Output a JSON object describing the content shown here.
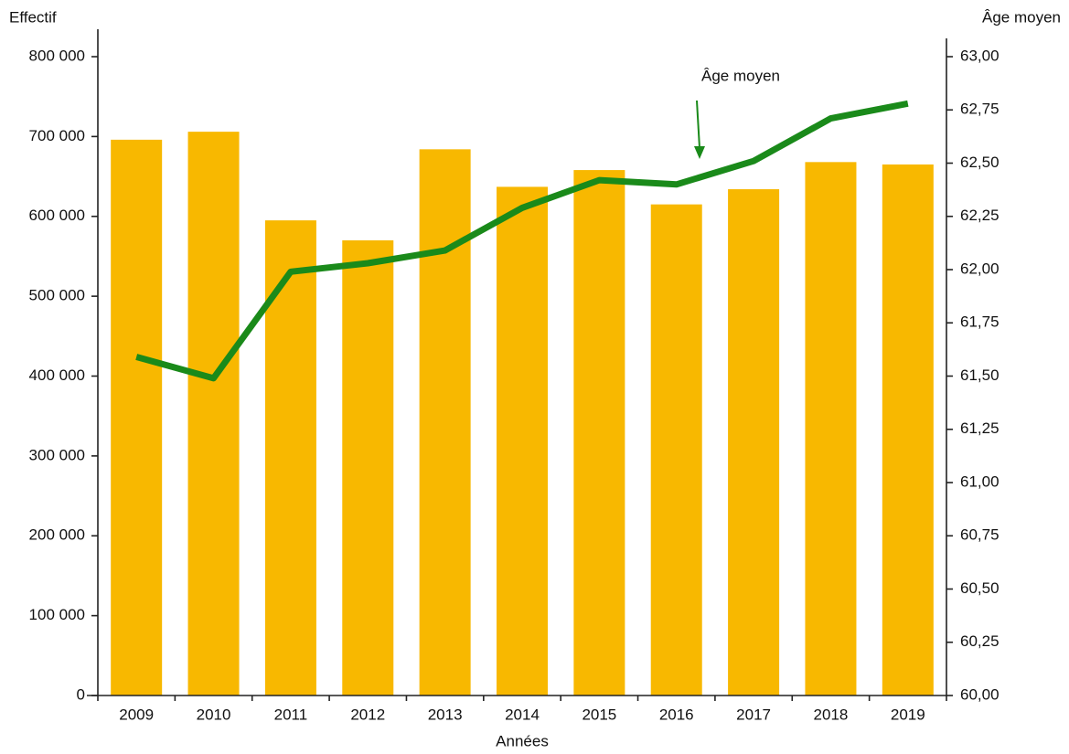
{
  "chart_data": {
    "type": "bar",
    "y_label": "Effectif",
    "y2_label": "Âge moyen",
    "x_label": "Années",
    "annotation": "Âge moyen",
    "categories": [
      "2009",
      "2010",
      "2011",
      "2012",
      "2013",
      "2014",
      "2015",
      "2016",
      "2017",
      "2018",
      "2019"
    ],
    "series": [
      {
        "type": "bar",
        "color": "#f8b800",
        "values": [
          696000,
          706000,
          595000,
          570000,
          684000,
          637000,
          658000,
          615000,
          634000,
          668000,
          665000
        ]
      },
      {
        "type": "line",
        "name": "Âge moyen",
        "axis": "y2",
        "color": "#1a8a1a",
        "values": [
          61.59,
          61.49,
          61.99,
          62.03,
          62.09,
          62.29,
          62.42,
          62.4,
          62.51,
          62.71,
          62.78
        ]
      }
    ],
    "ylim": [
      0,
      800000
    ],
    "yticks": [
      0,
      {
        "value": 100000,
        "label": "100 000"
      },
      {
        "value": 200000,
        "label": "200 000"
      },
      {
        "value": 300000,
        "label": "300 000"
      },
      {
        "value": 400000,
        "label": "400 000"
      },
      {
        "value": 500000,
        "label": "500 000"
      },
      {
        "value": 600000,
        "label": "600 000"
      },
      {
        "value": 700000,
        "label": "700 000"
      },
      {
        "value": 800000,
        "label": "800 000"
      }
    ],
    "y2lim": [
      60,
      63
    ],
    "y2ticks": [
      {
        "value": 60,
        "label": "60,00"
      },
      {
        "value": 60.25,
        "label": "60,25"
      },
      {
        "value": 60.5,
        "label": "60,50"
      },
      {
        "value": 60.75,
        "label": "60,75"
      },
      {
        "value": 61,
        "label": "61,00"
      },
      {
        "value": 61.25,
        "label": "61,25"
      },
      {
        "value": 61.5,
        "label": "61,50"
      },
      {
        "value": 61.75,
        "label": "61,75"
      },
      {
        "value": 62,
        "label": "62,00"
      },
      {
        "value": 62.25,
        "label": "62,25"
      },
      {
        "value": 62.5,
        "label": "62,50"
      },
      {
        "value": 62.75,
        "label": "62,75"
      },
      {
        "value": 63,
        "label": "63,00"
      }
    ]
  }
}
